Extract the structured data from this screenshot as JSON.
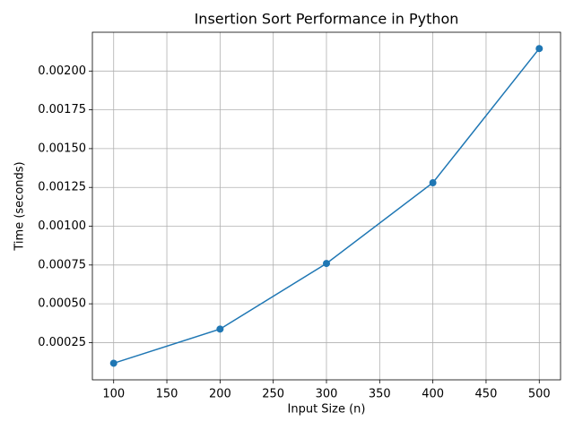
{
  "chart_data": {
    "type": "line",
    "title": "Insertion Sort Performance in Python",
    "x_label": "Input Size (n)",
    "y_label": "Time (seconds)",
    "x": [
      100,
      200,
      300,
      400,
      500
    ],
    "values": [
      0.000117,
      0.000337,
      0.00076,
      0.00128,
      0.002145
    ],
    "color": "#1f77b4",
    "marker": "o",
    "xlim": [
      80,
      520
    ],
    "xticks": [
      100,
      150,
      200,
      250,
      300,
      350,
      400,
      450,
      500
    ],
    "ylim": [
      1e-05,
      0.00225
    ],
    "yticks": [
      0.00025,
      {
        "value": 0.0005,
        "label": "0.00050"
      },
      0.00075,
      {
        "value": 0.001,
        "label": "0.00100"
      },
      0.00125,
      {
        "value": 0.0015,
        "label": "0.00150"
      },
      0.00175,
      {
        "value": 0.002,
        "label": "0.00200"
      }
    ],
    "grid": true
  }
}
